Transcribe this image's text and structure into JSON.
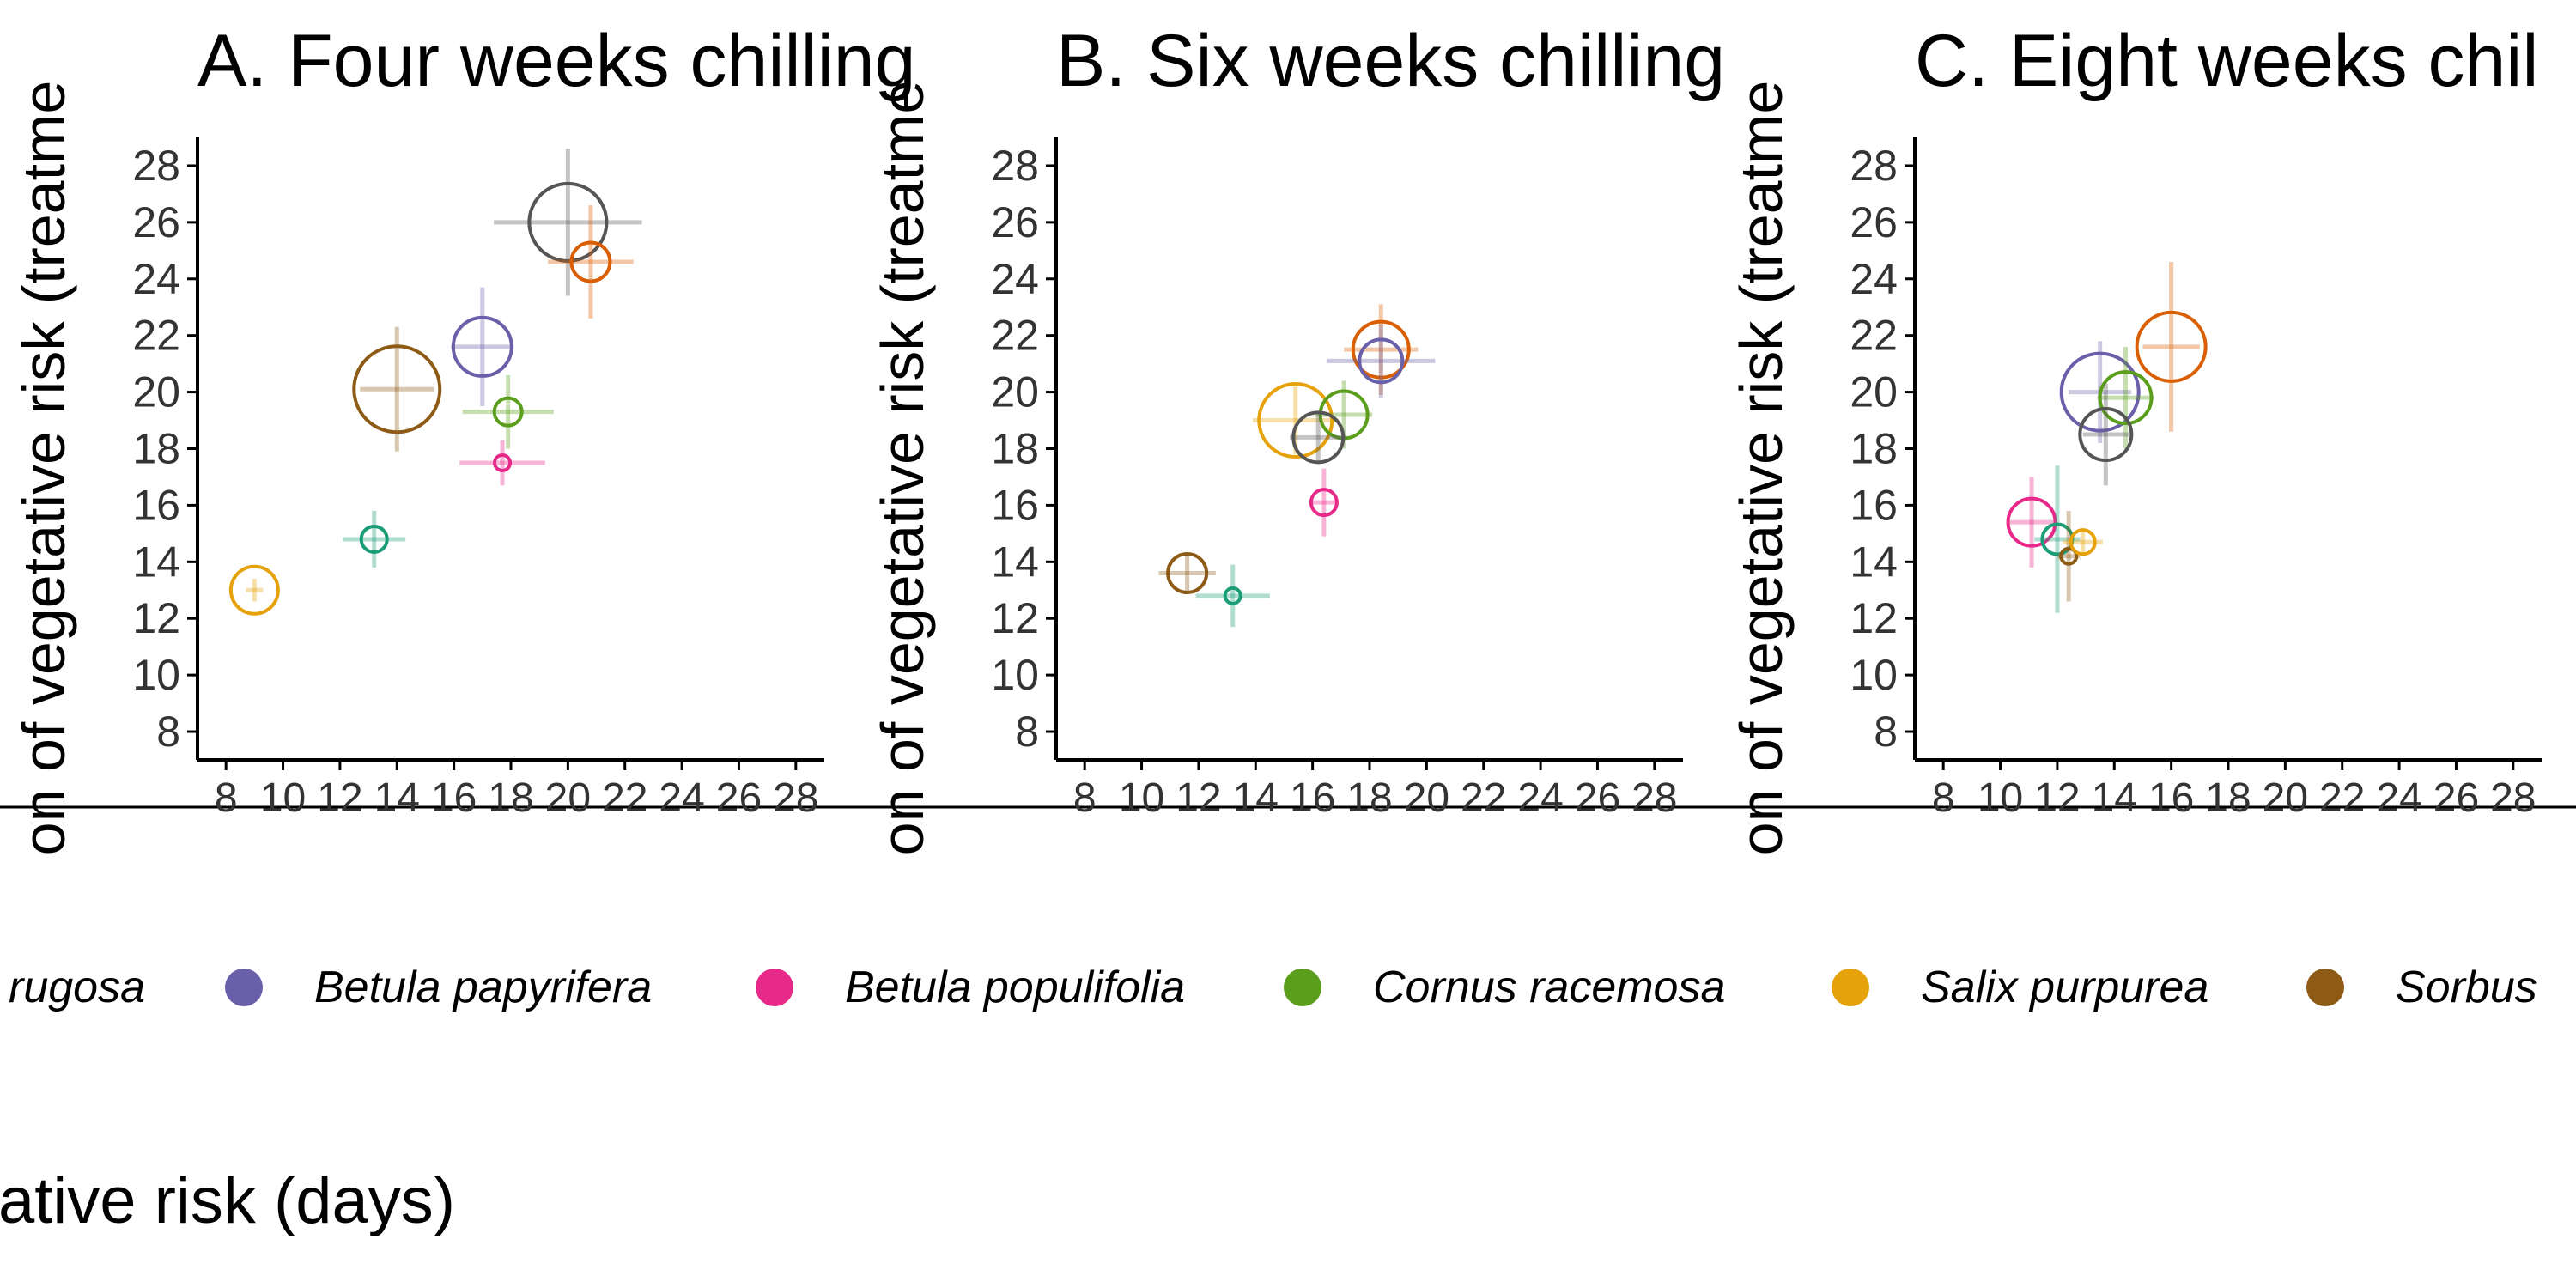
{
  "chart_data": [
    {
      "type": "scatter",
      "title": "A. Four weeks chilling",
      "ylabel": "on of vegetative risk (treatme",
      "ylim": [
        7,
        29
      ],
      "xlim": [
        7,
        29
      ],
      "yticks": [
        8,
        10,
        12,
        14,
        16,
        18,
        20,
        22,
        24,
        26,
        28
      ],
      "xticks": [
        8,
        10,
        12,
        14,
        16,
        18,
        20,
        22,
        24,
        26,
        28
      ],
      "points": [
        {
          "species": "Salix purpurea",
          "x": 9.0,
          "y": 13.0,
          "xerr": 0.3,
          "yerr": 0.4,
          "size": 0.55
        },
        {
          "species": "Sorbus",
          "x": 14.0,
          "y": 20.1,
          "xerr": 1.3,
          "yerr": 2.2,
          "size": 1.0
        },
        {
          "species": "teal",
          "x": 13.2,
          "y": 14.8,
          "xerr": 1.1,
          "yerr": 1.0,
          "size": 0.3
        },
        {
          "species": "Betula populifolia",
          "x": 17.7,
          "y": 17.5,
          "xerr": 1.5,
          "yerr": 0.8,
          "size": 0.15
        },
        {
          "species": "Cornus racemosa",
          "x": 17.9,
          "y": 19.3,
          "xerr": 1.6,
          "yerr": 1.3,
          "size": 0.32
        },
        {
          "species": "Betula papyrifera",
          "x": 17.0,
          "y": 21.6,
          "xerr": 1.1,
          "yerr": 2.1,
          "size": 0.68
        },
        {
          "species": "grey",
          "x": 20.0,
          "y": 26.0,
          "xerr": 2.6,
          "yerr": 2.6,
          "size": 0.9
        },
        {
          "species": "orange-red",
          "x": 20.8,
          "y": 24.6,
          "xerr": 1.5,
          "yerr": 2.0,
          "size": 0.45
        }
      ]
    },
    {
      "type": "scatter",
      "title": "B. Six weeks chilling",
      "ylabel": "on of vegetative risk (treatme",
      "ylim": [
        7,
        29
      ],
      "xlim": [
        7,
        29
      ],
      "yticks": [
        8,
        10,
        12,
        14,
        16,
        18,
        20,
        22,
        24,
        26,
        28
      ],
      "xticks": [
        8,
        10,
        12,
        14,
        16,
        18,
        20,
        22,
        24,
        26,
        28
      ],
      "points": [
        {
          "species": "Sorbus",
          "x": 11.6,
          "y": 13.6,
          "xerr": 1.0,
          "yerr": 0.7,
          "size": 0.45
        },
        {
          "species": "teal",
          "x": 13.2,
          "y": 12.8,
          "xerr": 1.3,
          "yerr": 1.1,
          "size": 0.14
        },
        {
          "species": "Betula populifolia",
          "x": 16.4,
          "y": 16.1,
          "xerr": 0.4,
          "yerr": 1.2,
          "size": 0.3
        },
        {
          "species": "Salix purpurea",
          "x": 15.4,
          "y": 19.0,
          "xerr": 1.5,
          "yerr": 1.2,
          "size": 0.85
        },
        {
          "species": "Cornus racemosa",
          "x": 17.1,
          "y": 19.2,
          "xerr": 1.0,
          "yerr": 1.2,
          "size": 0.55
        },
        {
          "species": "grey",
          "x": 16.2,
          "y": 18.4,
          "xerr": 1.0,
          "yerr": 0.9,
          "size": 0.58
        },
        {
          "species": "orange-red",
          "x": 18.4,
          "y": 21.5,
          "xerr": 1.3,
          "yerr": 1.6,
          "size": 0.65
        },
        {
          "species": "Betula papyrifera",
          "x": 18.4,
          "y": 21.1,
          "xerr": 1.9,
          "yerr": 1.3,
          "size": 0.5
        }
      ]
    },
    {
      "type": "scatter",
      "title": "C. Eight weeks chil",
      "ylabel": "on of vegetative risk (treatme",
      "ylim": [
        7,
        29
      ],
      "xlim": [
        7,
        29
      ],
      "yticks": [
        8,
        10,
        12,
        14,
        16,
        18,
        20,
        22,
        24,
        26,
        28
      ],
      "xticks": [
        8,
        10,
        12,
        14,
        16,
        18,
        20,
        22,
        24,
        26,
        28
      ],
      "points": [
        {
          "species": "Betula populifolia",
          "x": 11.1,
          "y": 15.4,
          "xerr": 0.8,
          "yerr": 1.6,
          "size": 0.55
        },
        {
          "species": "teal",
          "x": 12.0,
          "y": 14.8,
          "xerr": 0.8,
          "yerr": 2.6,
          "size": 0.35
        },
        {
          "species": "Sorbus",
          "x": 12.4,
          "y": 14.2,
          "xerr": 0.4,
          "yerr": 1.6,
          "size": 0.15
        },
        {
          "species": "Salix purpurea",
          "x": 12.9,
          "y": 14.7,
          "xerr": 0.7,
          "yerr": 0.5,
          "size": 0.28
        },
        {
          "species": "Betula papyrifera",
          "x": 13.5,
          "y": 20.0,
          "xerr": 1.1,
          "yerr": 1.8,
          "size": 0.9
        },
        {
          "species": "Cornus racemosa",
          "x": 14.4,
          "y": 19.8,
          "xerr": 1.0,
          "yerr": 1.8,
          "size": 0.6
        },
        {
          "species": "grey",
          "x": 13.7,
          "y": 18.5,
          "xerr": 0.8,
          "yerr": 1.8,
          "size": 0.6
        },
        {
          "species": "orange-red",
          "x": 16.0,
          "y": 21.6,
          "xerr": 1.0,
          "yerr": 3.0,
          "size": 0.8
        }
      ]
    }
  ],
  "colors": {
    "Betula papyrifera": "#6a60a9",
    "Betula populifolia": "#e7298a",
    "Cornus racemosa": "#5a9e1b",
    "Salix purpurea": "#e6a20a",
    "Sorbus": "#8e5b16",
    "teal": "#1b9e77",
    "grey": "#555555",
    "orange-red": "#d95f02"
  },
  "legend": [
    {
      "label": "rugosa",
      "color": ""
    },
    {
      "label": "Betula papyrifera",
      "color": "#6a60a9"
    },
    {
      "label": "Betula populifolia",
      "color": "#e7298a"
    },
    {
      "label": "Cornus racemosa",
      "color": "#5a9e1b"
    },
    {
      "label": "Salix purpurea",
      "color": "#e6a20a"
    },
    {
      "label": "Sorbus",
      "color": "#8e5b16"
    }
  ],
  "xlabel": "ative risk (days)"
}
